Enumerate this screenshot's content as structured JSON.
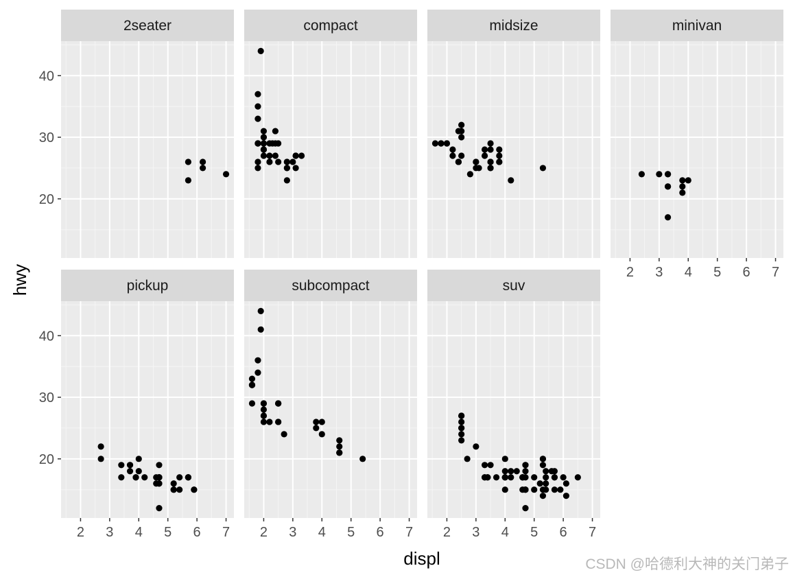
{
  "chart_data": {
    "type": "scatter",
    "xlabel": "displ",
    "ylabel": "hwy",
    "xlim": [
      1.33,
      7.27
    ],
    "ylim": [
      10.4,
      45.6
    ],
    "x_ticks": [
      2,
      3,
      4,
      5,
      6,
      7
    ],
    "y_ticks": [
      20,
      30,
      40
    ],
    "grid": true,
    "layout": {
      "ncol": 4,
      "nrow": 2
    },
    "facets": [
      {
        "label": "2seater",
        "points": [
          [
            5.7,
            26
          ],
          [
            5.7,
            23
          ],
          [
            6.2,
            26
          ],
          [
            6.2,
            25
          ],
          [
            7.0,
            24
          ]
        ]
      },
      {
        "label": "compact",
        "points": [
          [
            1.8,
            29
          ],
          [
            1.8,
            29
          ],
          [
            2.0,
            31
          ],
          [
            2.0,
            30
          ],
          [
            2.8,
            26
          ],
          [
            2.8,
            26
          ],
          [
            3.1,
            27
          ],
          [
            1.8,
            26
          ],
          [
            1.8,
            25
          ],
          [
            2.0,
            28
          ],
          [
            2.0,
            27
          ],
          [
            2.8,
            25
          ],
          [
            2.8,
            25
          ],
          [
            3.1,
            25
          ],
          [
            3.1,
            27
          ],
          [
            2.2,
            26
          ],
          [
            2.2,
            29
          ],
          [
            2.4,
            27
          ],
          [
            2.4,
            31
          ],
          [
            3.0,
            26
          ],
          [
            3.3,
            27
          ],
          [
            1.8,
            37
          ],
          [
            1.8,
            35
          ],
          [
            1.8,
            33
          ],
          [
            1.9,
            44
          ],
          [
            2.0,
            29
          ],
          [
            2.0,
            28
          ],
          [
            2.5,
            29
          ],
          [
            2.8,
            23
          ],
          [
            2.0,
            30
          ],
          [
            2.0,
            29
          ],
          [
            2.3,
            29
          ],
          [
            2.0,
            28
          ],
          [
            2.5,
            26
          ],
          [
            1.8,
            29
          ],
          [
            2.4,
            29
          ],
          [
            2.2,
            27
          ]
        ]
      },
      {
        "label": "midsize",
        "points": [
          [
            2.8,
            24
          ],
          [
            3.1,
            25
          ],
          [
            4.2,
            23
          ],
          [
            5.3,
            25
          ],
          [
            2.4,
            26
          ],
          [
            2.4,
            26
          ],
          [
            3.3,
            27
          ],
          [
            3.5,
            28
          ],
          [
            3.5,
            29
          ],
          [
            3.5,
            26
          ],
          [
            3.8,
            26
          ],
          [
            3.8,
            28
          ],
          [
            3.8,
            27
          ],
          [
            3.8,
            26
          ],
          [
            1.8,
            29
          ],
          [
            1.8,
            29
          ],
          [
            2.0,
            29
          ],
          [
            2.2,
            27
          ],
          [
            2.5,
            32
          ],
          [
            2.5,
            31
          ],
          [
            2.5,
            30
          ],
          [
            3.0,
            25
          ],
          [
            3.0,
            26
          ],
          [
            3.5,
            26
          ],
          [
            3.5,
            25
          ],
          [
            2.2,
            28
          ],
          [
            2.4,
            31
          ],
          [
            2.4,
            26
          ],
          [
            2.5,
            27
          ],
          [
            3.0,
            26
          ],
          [
            3.3,
            28
          ],
          [
            3.5,
            25
          ],
          [
            1.6,
            29
          ],
          [
            2.0,
            29
          ]
        ]
      },
      {
        "label": "minivan",
        "points": [
          [
            2.4,
            24
          ],
          [
            3.0,
            24
          ],
          [
            3.3,
            22
          ],
          [
            3.3,
            22
          ],
          [
            3.3,
            24
          ],
          [
            3.3,
            24
          ],
          [
            3.3,
            17
          ],
          [
            3.8,
            22
          ],
          [
            3.8,
            21
          ],
          [
            3.8,
            23
          ],
          [
            4.0,
            23
          ]
        ]
      },
      {
        "label": "pickup",
        "points": [
          [
            2.7,
            20
          ],
          [
            2.7,
            22
          ],
          [
            3.4,
            17
          ],
          [
            3.4,
            19
          ],
          [
            3.7,
            18
          ],
          [
            3.7,
            19
          ],
          [
            3.9,
            17
          ],
          [
            3.9,
            17
          ],
          [
            4.7,
            17
          ],
          [
            4.7,
            16
          ],
          [
            4.7,
            12
          ],
          [
            5.2,
            16
          ],
          [
            5.2,
            15
          ],
          [
            5.7,
            17
          ],
          [
            5.9,
            15
          ],
          [
            4.7,
            17
          ],
          [
            4.7,
            17
          ],
          [
            4.7,
            19
          ],
          [
            4.7,
            16
          ],
          [
            5.7,
            17
          ],
          [
            4.0,
            20
          ],
          [
            4.0,
            18
          ],
          [
            4.2,
            17
          ],
          [
            4.6,
            16
          ],
          [
            4.6,
            17
          ],
          [
            5.4,
            15
          ],
          [
            5.4,
            17
          ],
          [
            4.7,
            17
          ],
          [
            5.2,
            15
          ],
          [
            5.7,
            17
          ],
          [
            3.7,
            19
          ],
          [
            5.9,
            15
          ]
        ]
      },
      {
        "label": "subcompact",
        "points": [
          [
            1.6,
            33
          ],
          [
            1.6,
            32
          ],
          [
            1.6,
            32
          ],
          [
            1.6,
            29
          ],
          [
            1.6,
            32
          ],
          [
            1.8,
            34
          ],
          [
            1.8,
            36
          ],
          [
            1.9,
            44
          ],
          [
            1.9,
            41
          ],
          [
            2.0,
            29
          ],
          [
            2.0,
            26
          ],
          [
            2.0,
            28
          ],
          [
            2.0,
            29
          ],
          [
            2.0,
            27
          ],
          [
            2.2,
            26
          ],
          [
            2.5,
            29
          ],
          [
            2.5,
            26
          ],
          [
            2.7,
            24
          ],
          [
            3.8,
            26
          ],
          [
            3.8,
            25
          ],
          [
            4.0,
            26
          ],
          [
            4.0,
            24
          ],
          [
            4.6,
            21
          ],
          [
            4.6,
            22
          ],
          [
            4.6,
            23
          ],
          [
            5.4,
            20
          ],
          [
            4.6,
            21
          ],
          [
            2.0,
            27
          ],
          [
            2.5,
            29
          ],
          [
            2.5,
            26
          ],
          [
            2.5,
            29
          ]
        ]
      },
      {
        "label": "suv",
        "points": [
          [
            5.3,
            20
          ],
          [
            5.3,
            15
          ],
          [
            5.3,
            20
          ],
          [
            5.7,
            17
          ],
          [
            6.0,
            17
          ],
          [
            5.7,
            15
          ],
          [
            6.5,
            17
          ],
          [
            5.3,
            19
          ],
          [
            6.1,
            16
          ],
          [
            4.0,
            17
          ],
          [
            4.0,
            20
          ],
          [
            4.6,
            17
          ],
          [
            5.0,
            17
          ],
          [
            3.7,
            17
          ],
          [
            4.7,
            19
          ],
          [
            4.7,
            15
          ],
          [
            4.7,
            17
          ],
          [
            5.7,
            17
          ],
          [
            5.2,
            16
          ],
          [
            4.0,
            17
          ],
          [
            4.7,
            12
          ],
          [
            4.2,
            17
          ],
          [
            5.4,
            16
          ],
          [
            5.4,
            15
          ],
          [
            5.4,
            17
          ],
          [
            5.9,
            15
          ],
          [
            4.7,
            18
          ],
          [
            4.6,
            17
          ],
          [
            5.7,
            18
          ],
          [
            6.1,
            14
          ],
          [
            4.7,
            15
          ],
          [
            2.5,
            25
          ],
          [
            2.5,
            24
          ],
          [
            2.5,
            27
          ],
          [
            2.5,
            25
          ],
          [
            2.5,
            26
          ],
          [
            2.5,
            23
          ],
          [
            3.3,
            19
          ],
          [
            3.3,
            17
          ],
          [
            3.4,
            17
          ],
          [
            4.0,
            18
          ],
          [
            4.4,
            18
          ],
          [
            4.0,
            17
          ],
          [
            4.6,
            15
          ],
          [
            5.0,
            15
          ],
          [
            4.2,
            18
          ],
          [
            4.0,
            15
          ],
          [
            4.7,
            19
          ],
          [
            3.4,
            17
          ],
          [
            3.0,
            22
          ],
          [
            2.7,
            20
          ],
          [
            2.5,
            27
          ],
          [
            3.5,
            19
          ],
          [
            5.6,
            18
          ],
          [
            4.7,
            15
          ],
          [
            4.6,
            17
          ],
          [
            3.3,
            17
          ],
          [
            5.3,
            14
          ],
          [
            5.4,
            18
          ]
        ]
      }
    ]
  },
  "watermark": "CSDN @哈德利大神的关门弟子"
}
